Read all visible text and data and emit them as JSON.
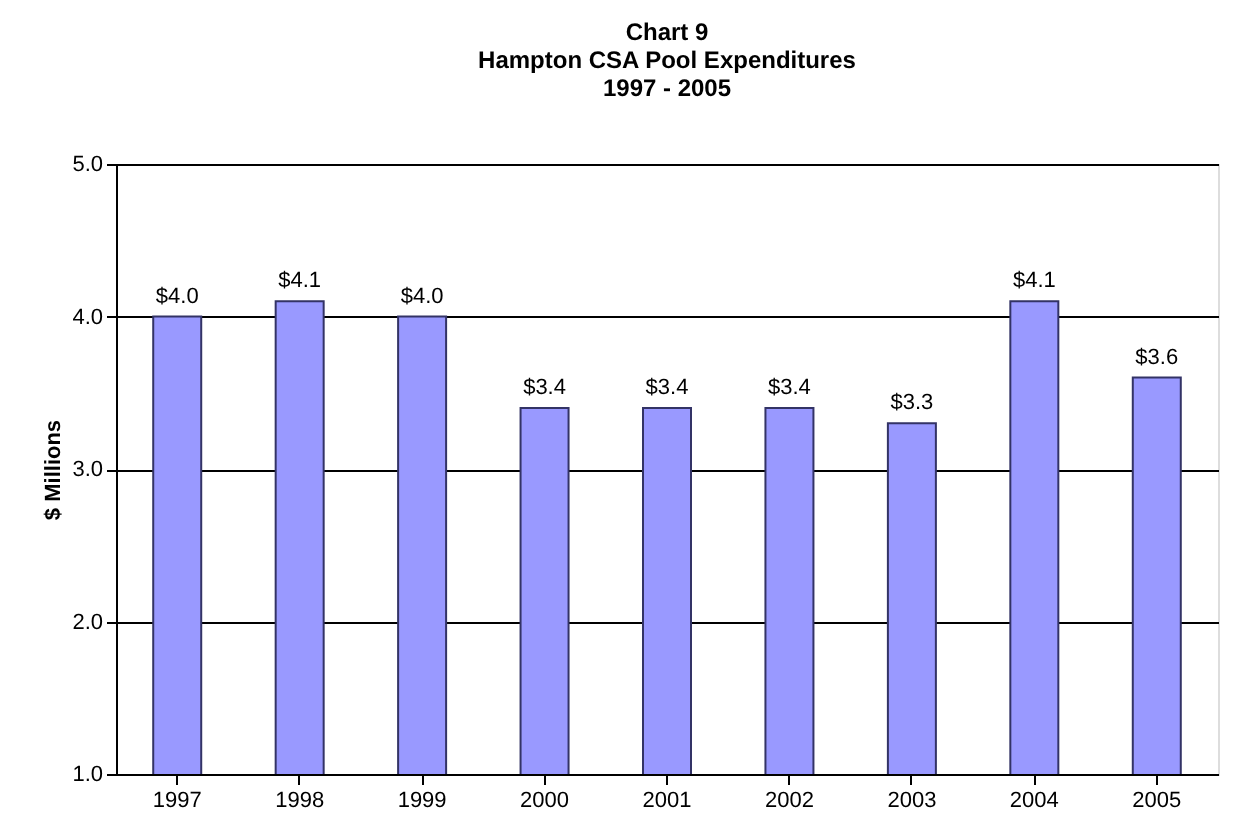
{
  "chart_data": {
    "type": "bar",
    "title": "Chart 9\nHampton CSA Pool Expenditures\n1997 - 2005",
    "ylabel": "$ Millions",
    "categories": [
      "1997",
      "1998",
      "1999",
      "2000",
      "2001",
      "2002",
      "2003",
      "2004",
      "2005"
    ],
    "values": [
      4.0,
      4.1,
      4.0,
      3.4,
      3.4,
      3.4,
      3.3,
      4.1,
      3.6
    ],
    "value_labels": [
      "$4.0",
      "$4.1",
      "$4.0",
      "$3.4",
      "$3.4",
      "$3.4",
      "$3.3",
      "$4.1",
      "$3.6"
    ],
    "color": "#9999ff",
    "ylim": [
      1.0,
      5.0
    ],
    "yticks": [
      {
        "value": 1,
        "label": "1.0"
      },
      {
        "value": 2,
        "label": "2.0"
      },
      {
        "value": 3,
        "label": "3.0"
      },
      {
        "value": 4,
        "label": "4.0"
      },
      {
        "value": 5,
        "label": "5.0"
      }
    ],
    "grid": "y"
  }
}
